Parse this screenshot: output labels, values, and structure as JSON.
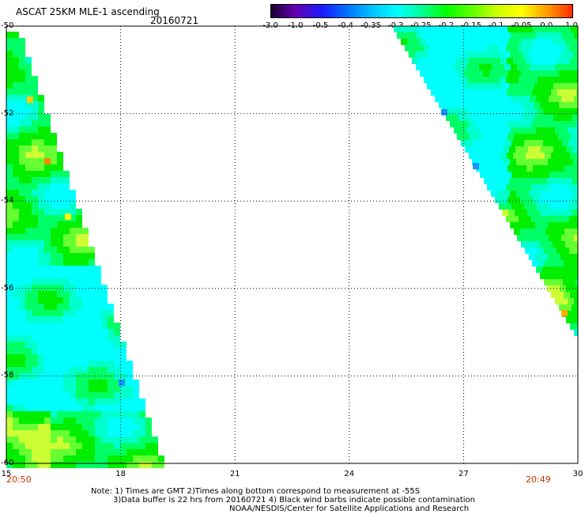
{
  "header": {
    "title": "ASCAT 25KM MLE-1 ascending",
    "date": "20160721"
  },
  "colorbar": {
    "labels": [
      "-3.0",
      "-1.0",
      "-0.5",
      "-0.4",
      "-0.35",
      "-0.3",
      "-0.25",
      "-0.2",
      "-0.15",
      "-0.1",
      "-0.05",
      "0.0",
      "1.0"
    ],
    "colors": [
      "#1a0030",
      "#6600b3",
      "#1a1aff",
      "#0070ff",
      "#00bfff",
      "#00ffff",
      "#00ff99",
      "#00ff00",
      "#66ff00",
      "#ccff00",
      "#ffff00",
      "#ff9900",
      "#ff2a00"
    ]
  },
  "map": {
    "lon_range": [
      15,
      30
    ],
    "lat_range": [
      -60,
      -50
    ],
    "x_ticks": [
      "15",
      "18",
      "21",
      "24",
      "27",
      "30"
    ],
    "y_ticks": [
      "-50",
      "-52",
      "-54",
      "-56",
      "-58",
      "-60"
    ],
    "grid": true,
    "start_time": "20:50",
    "end_time": "20:49"
  },
  "notes": {
    "line1": "Note: 1) Times are GMT 2)Times along bottom correspond to measurement at -55S",
    "line2": "3)Data buffer is 22 hrs from 20160721 4) Black wind barbs indicate possible contamination",
    "line3": "NOAA/NESDIS/Center for Satellite Applications and Research"
  }
}
